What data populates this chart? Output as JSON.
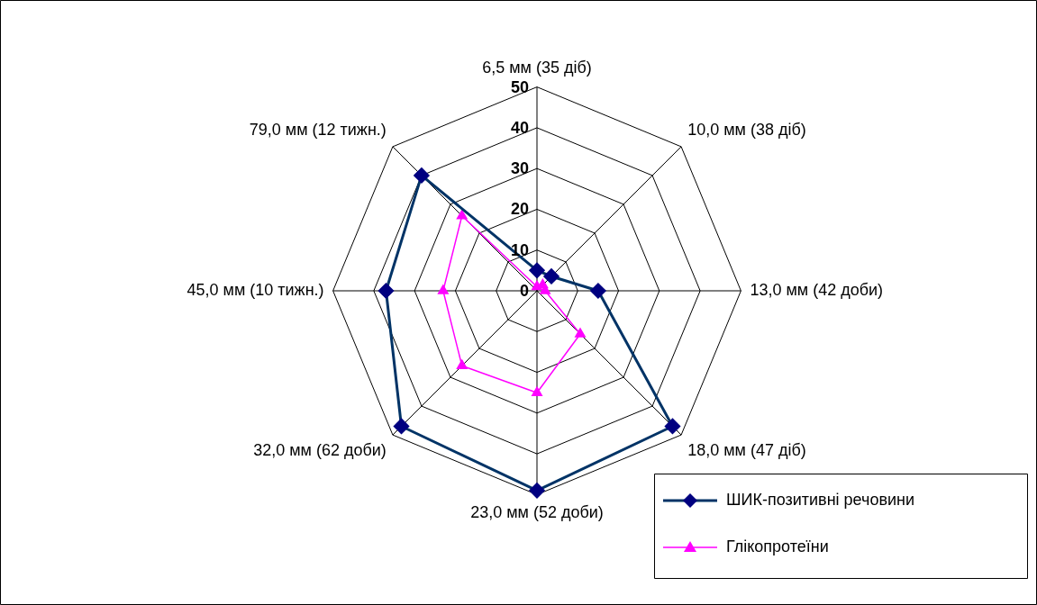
{
  "chart_data": {
    "type": "radar",
    "categories": [
      "6,5 мм (35 діб)",
      "10,0 мм (38 діб)",
      "13,0 мм (42 доби)",
      "18,0 мм (47 діб)",
      "23,0 мм (52 доби)",
      "32,0 мм (62 доби)",
      "45,0 мм (10 тижн.)",
      "79,0 мм (12 тижн.)"
    ],
    "series": [
      {
        "name": "ШИК-позитивні речовини",
        "color": "#003366",
        "marker": "diamond",
        "values": [
          5,
          5,
          15,
          47,
          49,
          47,
          37,
          40
        ]
      },
      {
        "name": "Глікопротеїни",
        "color": "#ff00ff",
        "marker": "triangle",
        "values": [
          1,
          2,
          2,
          15,
          25,
          26,
          23,
          26
        ]
      }
    ],
    "ylim": [
      0,
      50
    ],
    "yticks": [
      0,
      10,
      20,
      30,
      40,
      50
    ],
    "grid": true,
    "legend": "bottom right"
  }
}
